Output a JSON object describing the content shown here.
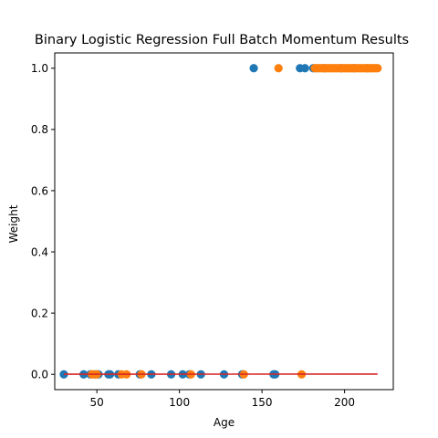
{
  "chart_data": {
    "type": "scatter",
    "title": "Binary Logistic Regression Full Batch Momentum Results",
    "xlabel": "Age",
    "ylabel": "Weight",
    "xlim": [
      24.5,
      229.5
    ],
    "ylim": [
      -0.05,
      1.05
    ],
    "xticks": [
      50,
      100,
      150,
      200
    ],
    "yticks": [
      0.0,
      0.2,
      0.4,
      0.6,
      0.8,
      1.0
    ],
    "xtick_labels": [
      "50",
      "100",
      "150",
      "200"
    ],
    "ytick_labels": [
      "0.0",
      "0.2",
      "0.4",
      "0.6",
      "0.8",
      "1.0"
    ],
    "grid": false,
    "series": [
      {
        "color": "#1f77b4",
        "marker": "circle",
        "points": [
          [
            30,
            0
          ],
          [
            42,
            0
          ],
          [
            46,
            0
          ],
          [
            49,
            0
          ],
          [
            51,
            0
          ],
          [
            57,
            0
          ],
          [
            58,
            0
          ],
          [
            63,
            0
          ],
          [
            76,
            0
          ],
          [
            83,
            0
          ],
          [
            95,
            0
          ],
          [
            102,
            0
          ],
          [
            106,
            0
          ],
          [
            113,
            0
          ],
          [
            127,
            0
          ],
          [
            138,
            0
          ],
          [
            157,
            0
          ],
          [
            158,
            0
          ],
          [
            145,
            1
          ],
          [
            173,
            1
          ],
          [
            176,
            1
          ],
          [
            181,
            1
          ],
          [
            188,
            1
          ],
          [
            198,
            1
          ],
          [
            206,
            1
          ],
          [
            214,
            1
          ]
        ]
      },
      {
        "color": "#ff7f0e",
        "marker": "circle",
        "points": [
          [
            47,
            0
          ],
          [
            48,
            0
          ],
          [
            50,
            0
          ],
          [
            65,
            0
          ],
          [
            68,
            0
          ],
          [
            77,
            0
          ],
          [
            107,
            0
          ],
          [
            139,
            0
          ],
          [
            174,
            0
          ],
          [
            160,
            1
          ],
          [
            182,
            1
          ],
          [
            183,
            1
          ],
          [
            184,
            1
          ],
          [
            185,
            1
          ],
          [
            186,
            1
          ],
          [
            187,
            1
          ],
          [
            188,
            1
          ],
          [
            189,
            1
          ],
          [
            190,
            1
          ],
          [
            191,
            1
          ],
          [
            192,
            1
          ],
          [
            193,
            1
          ],
          [
            194,
            1
          ],
          [
            195,
            1
          ],
          [
            196,
            1
          ],
          [
            197,
            1
          ],
          [
            198,
            1
          ],
          [
            199,
            1
          ],
          [
            200,
            1
          ],
          [
            201,
            1
          ],
          [
            202,
            1
          ],
          [
            203,
            1
          ],
          [
            204,
            1
          ],
          [
            205,
            1
          ],
          [
            206,
            1
          ],
          [
            207,
            1
          ],
          [
            208,
            1
          ],
          [
            209,
            1
          ],
          [
            210,
            1
          ],
          [
            211,
            1
          ],
          [
            212,
            1
          ],
          [
            213,
            1
          ],
          [
            214,
            1
          ],
          [
            215,
            1
          ],
          [
            216,
            1
          ],
          [
            217,
            1
          ],
          [
            218,
            1
          ],
          [
            219,
            1
          ],
          [
            220,
            1
          ]
        ]
      },
      {
        "color": "#d62728",
        "marker": "line",
        "points": [
          [
            30,
            0.0005
          ],
          [
            220,
            0.0008
          ]
        ]
      }
    ]
  }
}
